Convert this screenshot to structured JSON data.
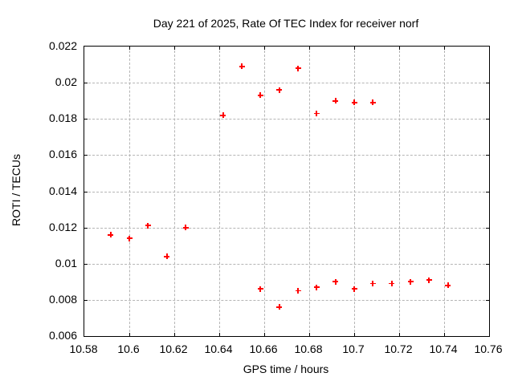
{
  "chart_data": {
    "type": "scatter",
    "title": "Day 221 of 2025, Rate Of TEC Index for receiver norf",
    "xlabel": "GPS time / hours",
    "ylabel": "ROTI / TECUs",
    "xlim": [
      10.58,
      10.76
    ],
    "ylim": [
      0.006,
      0.022
    ],
    "xticks": [
      "10.58",
      "10.6",
      "10.62",
      "10.64",
      "10.66",
      "10.68",
      "10.7",
      "10.72",
      "10.74",
      "10.76"
    ],
    "yticks": [
      "0.022",
      "0.02",
      "0.018",
      "0.016",
      "0.014",
      "0.012",
      "0.01",
      "0.008",
      "0.006"
    ],
    "grid": true,
    "legend": "none",
    "marker": "plus",
    "marker_color": "#ff0000",
    "grid_color": "#b5b5b5",
    "series": [
      {
        "name": "ROTI",
        "x": [
          10.5917,
          10.6,
          10.6083,
          10.6167,
          10.625,
          10.6417,
          10.65,
          10.6583,
          10.6667,
          10.675,
          10.6833,
          10.6917,
          10.7,
          10.7083,
          10.6583,
          10.6667,
          10.675,
          10.6833,
          10.6917,
          10.7,
          10.7083,
          10.7167,
          10.725,
          10.7333,
          10.7417
        ],
        "y": [
          0.0116,
          0.0114,
          0.0121,
          0.0104,
          0.012,
          0.0182,
          0.0209,
          0.0193,
          0.0196,
          0.0208,
          0.0183,
          0.019,
          0.0189,
          0.0189,
          0.0086,
          0.0076,
          0.0085,
          0.0087,
          0.009,
          0.0086,
          0.0089,
          0.0089,
          0.009,
          0.0091,
          0.0088
        ]
      }
    ]
  }
}
